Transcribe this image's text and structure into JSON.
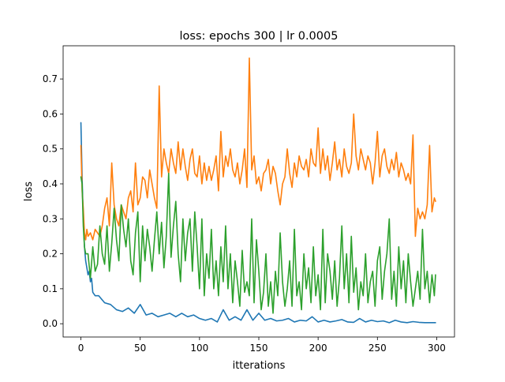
{
  "chart_data": {
    "type": "line",
    "title": "loss: epochs 300 | lr 0.0005",
    "xlabel": "itterations",
    "ylabel": "loss",
    "xlim": [
      -15,
      315
    ],
    "ylim": [
      -0.038,
      0.795
    ],
    "x_ticks": [
      0,
      50,
      100,
      150,
      200,
      250,
      300
    ],
    "x_tick_labels": [
      "0",
      "50",
      "100",
      "150",
      "200",
      "250",
      "300"
    ],
    "y_ticks": [
      0.0,
      0.1,
      0.2,
      0.3,
      0.4,
      0.5,
      0.6,
      0.7
    ],
    "y_tick_labels": [
      "0.0",
      "0.1",
      "0.2",
      "0.3",
      "0.4",
      "0.5",
      "0.6",
      "0.7"
    ],
    "grid": false,
    "legend": "none",
    "series": [
      {
        "color": "#1f77b4",
        "x": [
          0,
          1,
          2,
          3,
          4,
          5,
          6,
          7,
          8,
          9,
          10,
          12,
          15,
          20,
          25,
          30,
          35,
          40,
          45,
          50,
          55,
          60,
          65,
          70,
          75,
          80,
          85,
          90,
          95,
          100,
          105,
          110,
          115,
          120,
          125,
          130,
          135,
          140,
          145,
          150,
          155,
          160,
          165,
          170,
          175,
          180,
          185,
          190,
          195,
          200,
          205,
          210,
          215,
          220,
          225,
          230,
          235,
          240,
          245,
          250,
          255,
          260,
          265,
          270,
          275,
          280,
          285,
          290,
          295,
          299
        ],
        "y": [
          0.575,
          0.42,
          0.3,
          0.22,
          0.18,
          0.16,
          0.14,
          0.15,
          0.12,
          0.13,
          0.09,
          0.08,
          0.08,
          0.06,
          0.055,
          0.04,
          0.035,
          0.045,
          0.03,
          0.055,
          0.025,
          0.03,
          0.02,
          0.025,
          0.03,
          0.02,
          0.03,
          0.02,
          0.025,
          0.015,
          0.01,
          0.015,
          0.005,
          0.04,
          0.01,
          0.02,
          0.01,
          0.04,
          0.01,
          0.03,
          0.01,
          0.015,
          0.008,
          0.01,
          0.015,
          0.005,
          0.01,
          0.008,
          0.02,
          0.005,
          0.01,
          0.005,
          0.008,
          0.012,
          0.005,
          0.004,
          0.015,
          0.005,
          0.01,
          0.006,
          0.008,
          0.003,
          0.01,
          0.005,
          0.003,
          0.006,
          0.004,
          0.003,
          0.003,
          0.003
        ]
      },
      {
        "color": "#ff7f0e",
        "x": [
          0,
          1,
          2,
          3,
          4,
          5,
          6,
          8,
          10,
          12,
          14,
          16,
          18,
          20,
          22,
          24,
          26,
          28,
          30,
          32,
          34,
          36,
          38,
          40,
          42,
          44,
          46,
          48,
          50,
          52,
          54,
          56,
          58,
          60,
          62,
          64,
          66,
          68,
          70,
          72,
          74,
          76,
          78,
          80,
          82,
          84,
          86,
          88,
          90,
          92,
          94,
          96,
          98,
          100,
          102,
          104,
          106,
          108,
          110,
          112,
          114,
          116,
          118,
          120,
          122,
          124,
          126,
          128,
          130,
          132,
          134,
          136,
          138,
          140,
          142,
          144,
          146,
          148,
          150,
          152,
          154,
          156,
          158,
          160,
          162,
          164,
          166,
          168,
          170,
          172,
          174,
          176,
          178,
          180,
          182,
          184,
          186,
          188,
          190,
          192,
          194,
          196,
          198,
          200,
          202,
          204,
          206,
          208,
          210,
          212,
          214,
          216,
          218,
          220,
          222,
          224,
          226,
          228,
          230,
          232,
          234,
          236,
          238,
          240,
          242,
          244,
          246,
          248,
          250,
          252,
          254,
          256,
          258,
          260,
          262,
          264,
          266,
          268,
          270,
          272,
          274,
          276,
          278,
          280,
          282,
          284,
          286,
          288,
          290,
          292,
          294,
          296,
          298,
          299
        ],
        "y": [
          0.51,
          0.38,
          0.33,
          0.26,
          0.24,
          0.27,
          0.25,
          0.26,
          0.24,
          0.27,
          0.26,
          0.25,
          0.28,
          0.33,
          0.36,
          0.28,
          0.46,
          0.34,
          0.3,
          0.28,
          0.34,
          0.32,
          0.3,
          0.36,
          0.38,
          0.32,
          0.46,
          0.34,
          0.36,
          0.42,
          0.41,
          0.36,
          0.44,
          0.4,
          0.36,
          0.33,
          0.68,
          0.42,
          0.5,
          0.46,
          0.43,
          0.5,
          0.46,
          0.43,
          0.52,
          0.44,
          0.5,
          0.45,
          0.41,
          0.47,
          0.5,
          0.43,
          0.42,
          0.48,
          0.4,
          0.46,
          0.41,
          0.45,
          0.41,
          0.44,
          0.48,
          0.38,
          0.55,
          0.42,
          0.48,
          0.45,
          0.5,
          0.44,
          0.42,
          0.46,
          0.4,
          0.44,
          0.5,
          0.39,
          0.76,
          0.44,
          0.48,
          0.4,
          0.42,
          0.38,
          0.43,
          0.44,
          0.47,
          0.4,
          0.45,
          0.43,
          0.38,
          0.34,
          0.4,
          0.42,
          0.5,
          0.43,
          0.39,
          0.46,
          0.42,
          0.48,
          0.45,
          0.44,
          0.47,
          0.42,
          0.5,
          0.46,
          0.45,
          0.56,
          0.43,
          0.5,
          0.44,
          0.48,
          0.41,
          0.46,
          0.52,
          0.44,
          0.47,
          0.42,
          0.5,
          0.45,
          0.43,
          0.46,
          0.6,
          0.48,
          0.44,
          0.5,
          0.47,
          0.44,
          0.48,
          0.46,
          0.4,
          0.46,
          0.55,
          0.42,
          0.48,
          0.5,
          0.45,
          0.43,
          0.47,
          0.44,
          0.49,
          0.42,
          0.46,
          0.44,
          0.41,
          0.43,
          0.4,
          0.54,
          0.25,
          0.33,
          0.3,
          0.32,
          0.3,
          0.34,
          0.51,
          0.32,
          0.36,
          0.35
        ]
      },
      {
        "color": "#2ca02c",
        "x": [
          0,
          1,
          2,
          3,
          4,
          6,
          8,
          10,
          12,
          14,
          16,
          18,
          20,
          22,
          24,
          26,
          28,
          30,
          32,
          34,
          36,
          38,
          40,
          42,
          44,
          46,
          48,
          50,
          52,
          54,
          56,
          58,
          60,
          62,
          64,
          66,
          68,
          70,
          72,
          74,
          76,
          78,
          80,
          82,
          84,
          86,
          88,
          90,
          92,
          94,
          96,
          98,
          100,
          102,
          104,
          106,
          108,
          110,
          112,
          114,
          116,
          118,
          120,
          122,
          124,
          126,
          128,
          130,
          132,
          134,
          136,
          138,
          140,
          142,
          144,
          146,
          148,
          150,
          152,
          154,
          156,
          158,
          160,
          162,
          164,
          166,
          168,
          170,
          172,
          174,
          176,
          178,
          180,
          182,
          184,
          186,
          188,
          190,
          192,
          194,
          196,
          198,
          200,
          202,
          204,
          206,
          208,
          210,
          212,
          214,
          216,
          218,
          220,
          222,
          224,
          226,
          228,
          230,
          232,
          234,
          236,
          238,
          240,
          242,
          244,
          246,
          248,
          250,
          252,
          254,
          256,
          258,
          260,
          262,
          264,
          266,
          268,
          270,
          272,
          274,
          276,
          278,
          280,
          282,
          284,
          286,
          288,
          290,
          292,
          294,
          296,
          298,
          299
        ],
        "y": [
          0.42,
          0.4,
          0.28,
          0.22,
          0.2,
          0.2,
          0.13,
          0.22,
          0.15,
          0.17,
          0.28,
          0.2,
          0.17,
          0.28,
          0.15,
          0.23,
          0.33,
          0.24,
          0.18,
          0.34,
          0.27,
          0.22,
          0.3,
          0.18,
          0.14,
          0.26,
          0.32,
          0.12,
          0.28,
          0.18,
          0.27,
          0.22,
          0.15,
          0.24,
          0.32,
          0.2,
          0.29,
          0.16,
          0.25,
          0.43,
          0.19,
          0.28,
          0.35,
          0.2,
          0.12,
          0.3,
          0.18,
          0.26,
          0.3,
          0.15,
          0.32,
          0.22,
          0.1,
          0.3,
          0.08,
          0.2,
          0.13,
          0.27,
          0.1,
          0.18,
          0.08,
          0.22,
          0.12,
          0.28,
          0.1,
          0.2,
          0.06,
          0.18,
          0.12,
          0.05,
          0.21,
          0.09,
          0.12,
          0.08,
          0.3,
          0.06,
          0.24,
          0.15,
          0.04,
          0.09,
          0.2,
          0.05,
          0.12,
          0.03,
          0.15,
          0.08,
          0.26,
          0.12,
          0.05,
          0.1,
          0.18,
          0.05,
          0.27,
          0.08,
          0.12,
          0.04,
          0.2,
          0.1,
          0.16,
          0.06,
          0.22,
          0.08,
          0.14,
          0.04,
          0.27,
          0.06,
          0.2,
          0.15,
          0.07,
          0.18,
          0.05,
          0.13,
          0.28,
          0.1,
          0.2,
          0.06,
          0.25,
          0.09,
          0.16,
          0.04,
          0.12,
          0.08,
          0.2,
          0.06,
          0.12,
          0.15,
          0.05,
          0.18,
          0.22,
          0.07,
          0.15,
          0.2,
          0.3,
          0.07,
          0.15,
          0.05,
          0.22,
          0.1,
          0.18,
          0.06,
          0.2,
          0.12,
          0.05,
          0.1,
          0.15,
          0.07,
          0.27,
          0.1,
          0.15,
          0.06,
          0.14,
          0.08,
          0.14
        ]
      }
    ]
  }
}
